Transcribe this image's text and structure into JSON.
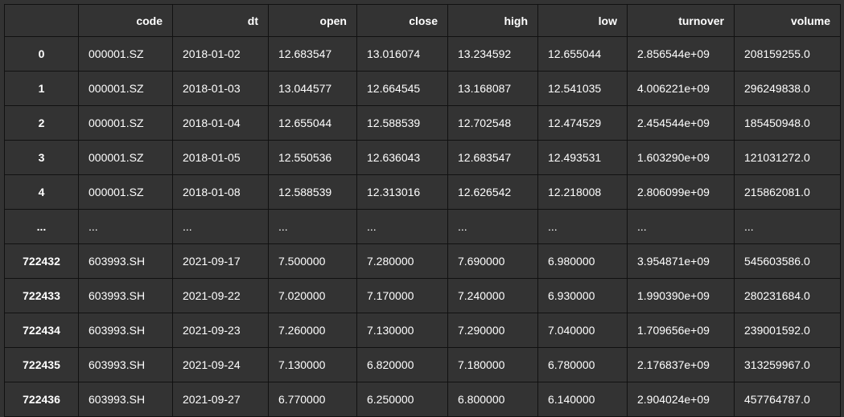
{
  "table": {
    "index_header": "",
    "columns": [
      "code",
      "dt",
      "open",
      "close",
      "high",
      "low",
      "turnover",
      "volume"
    ],
    "rows": [
      {
        "index": "0",
        "cells": [
          "000001.SZ",
          "2018-01-02",
          "12.683547",
          "13.016074",
          "13.234592",
          "12.655044",
          "2.856544e+09",
          "208159255.0"
        ]
      },
      {
        "index": "1",
        "cells": [
          "000001.SZ",
          "2018-01-03",
          "13.044577",
          "12.664545",
          "13.168087",
          "12.541035",
          "4.006221e+09",
          "296249838.0"
        ]
      },
      {
        "index": "2",
        "cells": [
          "000001.SZ",
          "2018-01-04",
          "12.655044",
          "12.588539",
          "12.702548",
          "12.474529",
          "2.454544e+09",
          "185450948.0"
        ]
      },
      {
        "index": "3",
        "cells": [
          "000001.SZ",
          "2018-01-05",
          "12.550536",
          "12.636043",
          "12.683547",
          "12.493531",
          "1.603290e+09",
          "121031272.0"
        ]
      },
      {
        "index": "4",
        "cells": [
          "000001.SZ",
          "2018-01-08",
          "12.588539",
          "12.313016",
          "12.626542",
          "12.218008",
          "2.806099e+09",
          "215862081.0"
        ]
      },
      {
        "index": "...",
        "cells": [
          "...",
          "...",
          "...",
          "...",
          "...",
          "...",
          "...",
          "..."
        ]
      },
      {
        "index": "722432",
        "cells": [
          "603993.SH",
          "2021-09-17",
          "7.500000",
          "7.280000",
          "7.690000",
          "6.980000",
          "3.954871e+09",
          "545603586.0"
        ]
      },
      {
        "index": "722433",
        "cells": [
          "603993.SH",
          "2021-09-22",
          "7.020000",
          "7.170000",
          "7.240000",
          "6.930000",
          "1.990390e+09",
          "280231684.0"
        ]
      },
      {
        "index": "722434",
        "cells": [
          "603993.SH",
          "2021-09-23",
          "7.260000",
          "7.130000",
          "7.290000",
          "7.040000",
          "1.709656e+09",
          "239001592.0"
        ]
      },
      {
        "index": "722435",
        "cells": [
          "603993.SH",
          "2021-09-24",
          "7.130000",
          "6.820000",
          "7.180000",
          "6.780000",
          "2.176837e+09",
          "313259967.0"
        ]
      },
      {
        "index": "722436",
        "cells": [
          "603993.SH",
          "2021-09-27",
          "6.770000",
          "6.250000",
          "6.800000",
          "6.140000",
          "2.904024e+09",
          "457764787.0"
        ]
      }
    ]
  }
}
